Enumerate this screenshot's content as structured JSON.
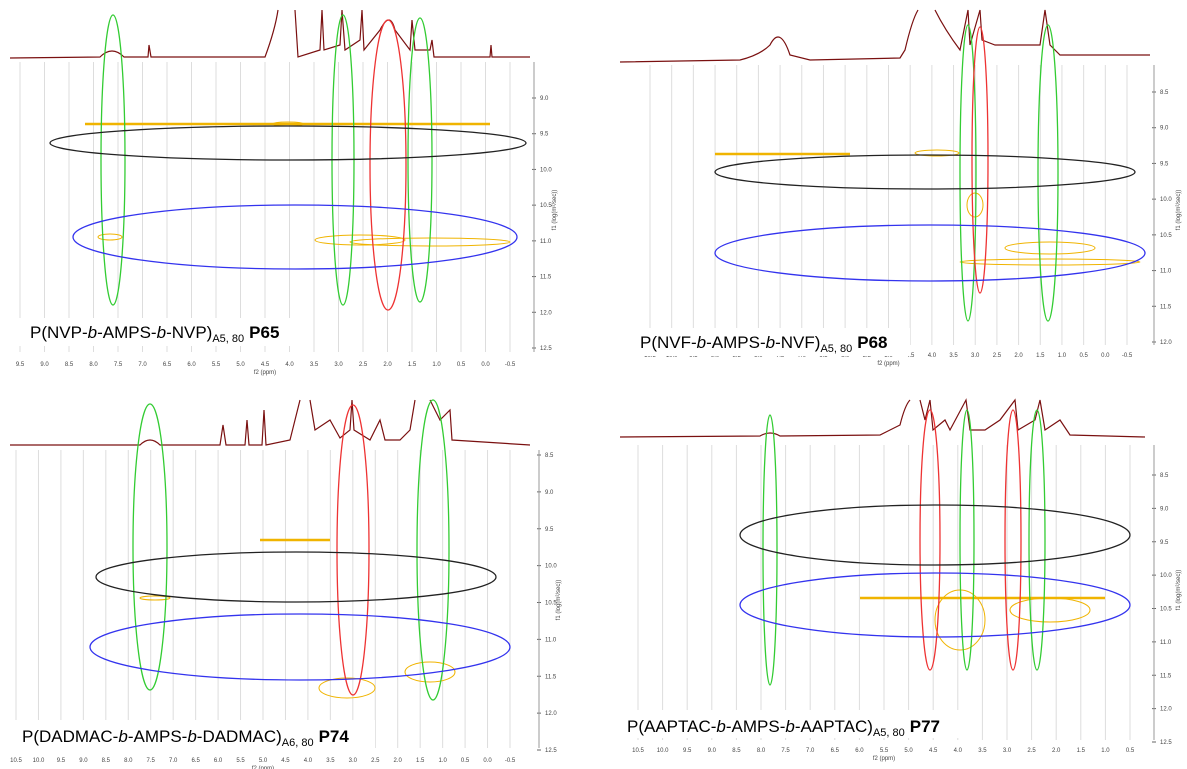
{
  "panels": [
    {
      "label": {
        "pre": "P(NVP-",
        "b1": "b",
        "mid": "-AMPS-",
        "b2": "b",
        "post": "-NVP)",
        "sub": "A5, 80",
        "code": "P65"
      },
      "xticks": [
        "9.5",
        "9.0",
        "8.5",
        "8.0",
        "7.5",
        "7.0",
        "6.5",
        "6.0",
        "5.5",
        "5.0",
        "4.5",
        "4.0",
        "3.5",
        "3.0",
        "2.5",
        "2.0",
        "1.5",
        "1.0",
        "0.5",
        "0.0",
        "-0.5"
      ],
      "yticks": [
        "9.0",
        "9.5",
        "10.0",
        "10.5",
        "11.0",
        "11.5",
        "12.0",
        "12.5"
      ],
      "xlabel": "f2 (ppm)",
      "ylabel": "f1 (log(m²/sec))"
    },
    {
      "label": {
        "pre": "P(NVF-",
        "b1": "b",
        "mid": "-AMPS-",
        "b2": "b",
        "post": "-NVF)",
        "sub": "A5, 80",
        "code": "P68"
      },
      "xticks": [
        "10.5",
        "10.0",
        "9.5",
        "9.0",
        "8.5",
        "8.0",
        "7.5",
        "7.0",
        "6.5",
        "6.0",
        "5.5",
        "5.0",
        "4.5",
        "4.0",
        "3.5",
        "3.0",
        "2.5",
        "2.0",
        "1.5",
        "1.0",
        "0.5",
        "0.0",
        "-0.5"
      ],
      "yticks": [
        "8.5",
        "9.0",
        "9.5",
        "10.0",
        "10.5",
        "11.0",
        "11.5",
        "12.0"
      ],
      "xlabel": "f2 (ppm)",
      "ylabel": "f1 (log(m²/sec))"
    },
    {
      "label": {
        "pre": "P(DADMAC-",
        "b1": "b",
        "mid": "-AMPS-",
        "b2": "b",
        "post": "-DADMAC)",
        "sub": "A6, 80",
        "code": "P74"
      },
      "xticks": [
        "10.5",
        "10.0",
        "9.5",
        "9.0",
        "8.5",
        "8.0",
        "7.5",
        "7.0",
        "6.5",
        "6.0",
        "5.5",
        "5.0",
        "4.5",
        "4.0",
        "3.5",
        "3.0",
        "2.5",
        "2.0",
        "1.5",
        "1.0",
        "0.5",
        "0.0",
        "-0.5"
      ],
      "yticks": [
        "8.5",
        "9.0",
        "9.5",
        "10.0",
        "10.5",
        "11.0",
        "11.5",
        "12.0",
        "12.5"
      ],
      "xlabel": "f2 (ppm)",
      "ylabel": "f1 (log(m²/sec))"
    },
    {
      "label": {
        "pre": "P(AAPTAC-",
        "b1": "b",
        "mid": "-AMPS-",
        "b2": "b",
        "post": "-AAPTAC)",
        "sub": "A5, 80",
        "code": "P77"
      },
      "xticks": [
        "10.5",
        "10.0",
        "9.5",
        "9.0",
        "8.5",
        "8.0",
        "7.5",
        "7.0",
        "6.5",
        "6.0",
        "5.5",
        "5.0",
        "4.5",
        "4.0",
        "3.5",
        "3.0",
        "2.5",
        "2.0",
        "1.5",
        "1.0",
        "0.5"
      ],
      "yticks": [
        "8.5",
        "9.0",
        "9.5",
        "10.0",
        "10.5",
        "11.0",
        "11.5",
        "12.0",
        "12.5"
      ],
      "xlabel": "f2 (ppm)",
      "ylabel": "f1 (log(m²/sec))"
    }
  ]
}
